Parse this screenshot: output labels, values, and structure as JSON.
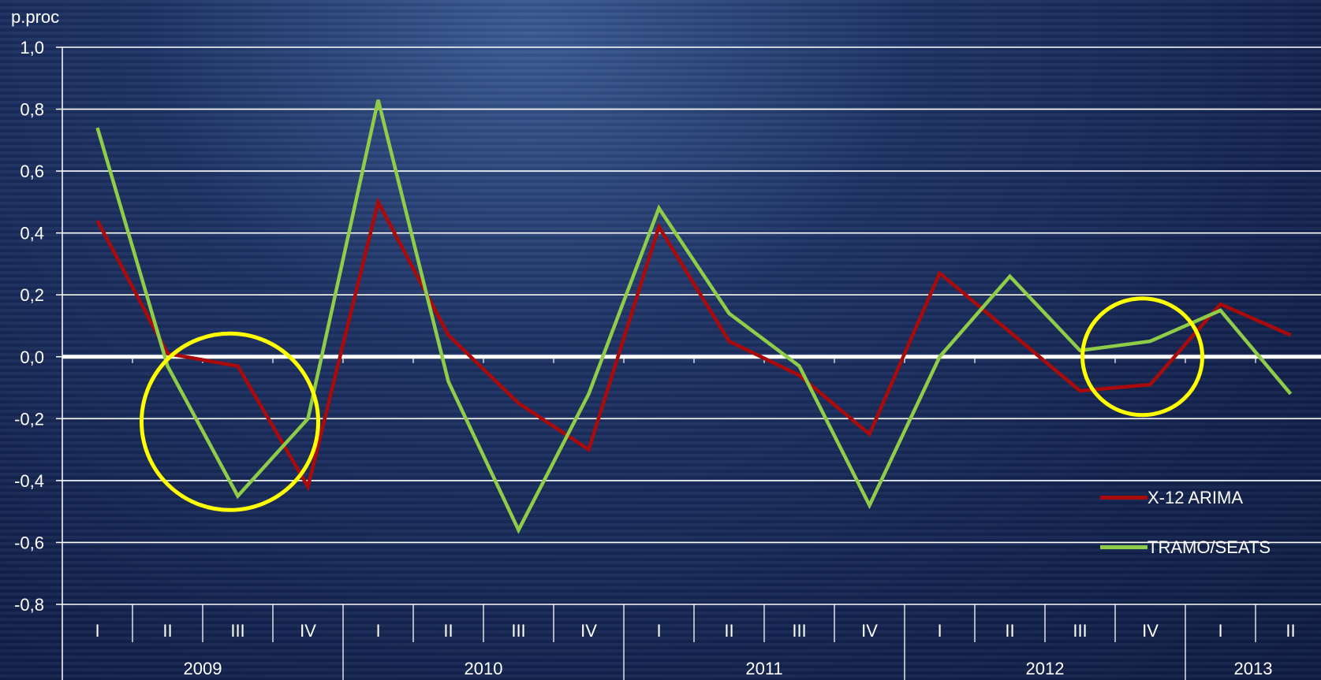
{
  "chart_data": {
    "type": "line",
    "ylabel": "p.proc",
    "ylim": [
      -0.8,
      1.0
    ],
    "yticks": [
      "1,0",
      "0,8",
      "0,6",
      "0,4",
      "0,2",
      "0,0",
      "-0,2",
      "-0,4",
      "-0,6",
      "-0,8"
    ],
    "grid": true,
    "legend_position": "bottom-right",
    "categories": [
      "I",
      "II",
      "III",
      "IV",
      "I",
      "II",
      "III",
      "IV",
      "I",
      "II",
      "III",
      "IV",
      "I",
      "II",
      "III",
      "IV",
      "I",
      "II"
    ],
    "years": [
      {
        "label": "2009",
        "quarters": 4
      },
      {
        "label": "2010",
        "quarters": 4
      },
      {
        "label": "2011",
        "quarters": 4
      },
      {
        "label": "2012",
        "quarters": 4
      },
      {
        "label": "2013",
        "quarters": 2
      }
    ],
    "series": [
      {
        "name": "X-12 ARIMA",
        "color": "#aa0a0a",
        "values": [
          0.44,
          0.01,
          -0.03,
          -0.42,
          0.5,
          0.07,
          -0.15,
          -0.3,
          0.42,
          0.05,
          -0.06,
          -0.25,
          0.27,
          0.08,
          -0.11,
          -0.09,
          0.17,
          0.07
        ]
      },
      {
        "name": "TRAMO/SEATS",
        "color": "#8fcc48",
        "values": [
          0.74,
          -0.03,
          -0.45,
          -0.2,
          0.83,
          -0.08,
          -0.56,
          -0.12,
          0.48,
          0.14,
          -0.03,
          -0.48,
          0.0,
          0.26,
          0.02,
          0.05,
          0.15,
          -0.12
        ]
      }
    ],
    "highlights": [
      {
        "label": "2009 Q2–Q4",
        "center_x_index": 2.0,
        "center_y": -0.21,
        "color": "#ffff00"
      },
      {
        "label": "2012 Q4",
        "center_x_index": 15.0,
        "center_y": 0.0,
        "color": "#ffff00"
      }
    ]
  }
}
